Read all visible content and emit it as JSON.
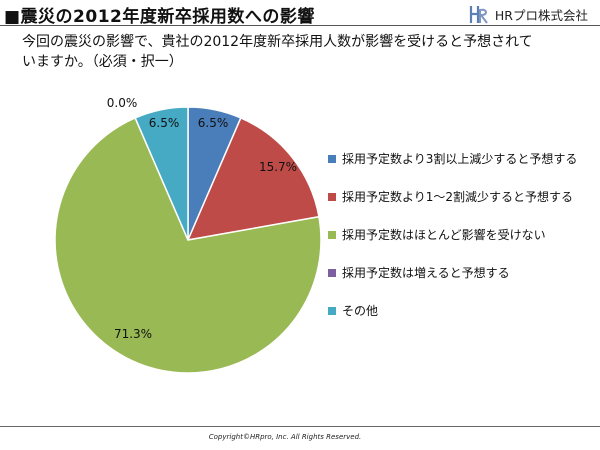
{
  "header": {
    "title": "■震災の2012年度新卒採用数への影響",
    "logo_text": "HRプロ株式会社",
    "logo_mark_name": "hr-logo-mark"
  },
  "question": {
    "line1": "今回の震災の影響で、貴社の2012年度新卒採用人数が影響を受けると予想されて",
    "line2": "いますか。（必須・択一）"
  },
  "chart_data": {
    "type": "pie",
    "start_angle_deg": 0,
    "direction": "clockwise",
    "legend_position": "right",
    "slices": [
      {
        "label": "採用予定数より3割以上減少すると予想する",
        "value": 6.5,
        "value_label": "6.5%",
        "color": "#4a7ebb"
      },
      {
        "label": "採用予定数より1～2割減少すると予想する",
        "value": 15.7,
        "value_label": "15.7%",
        "color": "#be4b48"
      },
      {
        "label": "採用予定数はほとんど影響を受けない",
        "value": 71.3,
        "value_label": "71.3%",
        "color": "#98b954"
      },
      {
        "label": "採用予定数は増えると予想する",
        "value": 0.0,
        "value_label": "0.0%",
        "color": "#7d60a0"
      },
      {
        "label": "その他",
        "value": 6.5,
        "value_label": "6.5%",
        "color": "#46aac5"
      }
    ]
  },
  "footer": {
    "copyright": "Copyright©HRpro, Inc. All Rights Reserved."
  }
}
